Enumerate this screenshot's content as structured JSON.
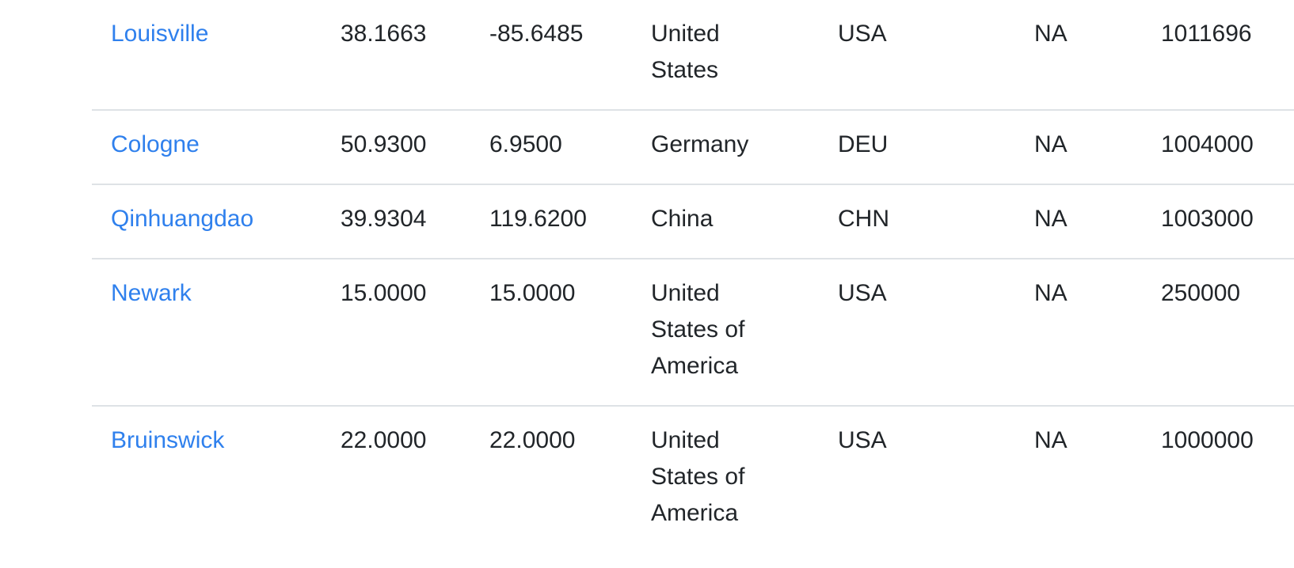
{
  "table": {
    "rows": [
      {
        "city": "Louisville",
        "lat": "38.1663",
        "lng": "-85.6485",
        "country": "United States",
        "iso3": "USA",
        "capital": "NA",
        "population": "1011696"
      },
      {
        "city": "Cologne",
        "lat": "50.9300",
        "lng": "6.9500",
        "country": "Germany",
        "iso3": "DEU",
        "capital": "NA",
        "population": "1004000"
      },
      {
        "city": "Qinhuangdao",
        "lat": "39.9304",
        "lng": "119.6200",
        "country": "China",
        "iso3": "CHN",
        "capital": "NA",
        "population": "1003000"
      },
      {
        "city": "Newark",
        "lat": "15.0000",
        "lng": "15.0000",
        "country": "United States of America",
        "iso3": "USA",
        "capital": "NA",
        "population": "250000"
      },
      {
        "city": "Bruinswick",
        "lat": "22.0000",
        "lng": "22.0000",
        "country": "United States of America",
        "iso3": "USA",
        "capital": "NA",
        "population": "1000000"
      }
    ]
  },
  "colors": {
    "link": "#2f80ed",
    "text": "#212529",
    "divider": "#dee2e6"
  }
}
